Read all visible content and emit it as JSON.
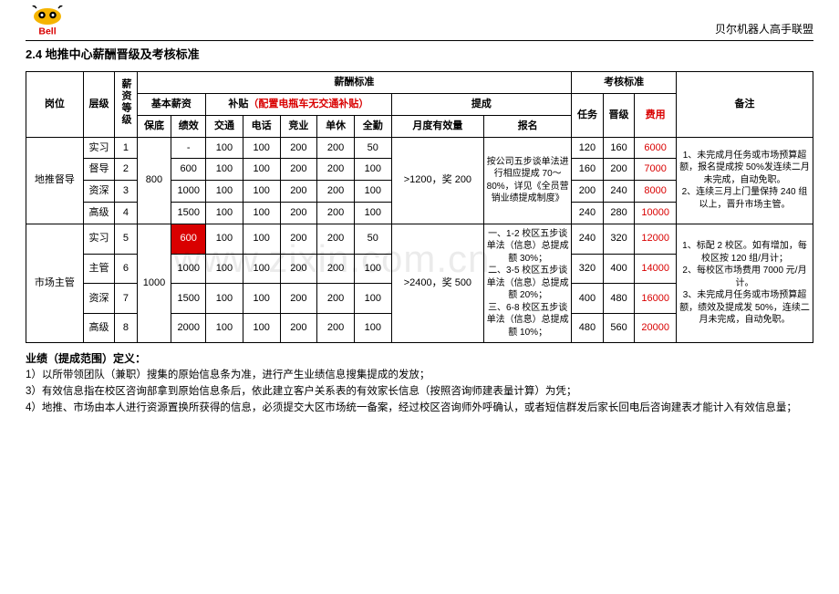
{
  "header": {
    "brand": "贝尔机器人高手联盟",
    "logo_name": "Bell"
  },
  "section_title": "2.4 地推中心薪酬晋级及考核标准",
  "watermark": "www.zixin.com.cn",
  "cols": {
    "post": "岗位",
    "level": "层级",
    "grade": "薪资等级",
    "salary_std": "薪酬标准",
    "assess_std": "考核标准",
    "remark": "备注",
    "base": "基本薪资",
    "allowance": "补贴",
    "allowance_note": "（配置电瓶车无交通补贴）",
    "commission": "提成",
    "baodi": "保底",
    "jixiao": "绩效",
    "jiaotong": "交通",
    "dianhua": "电话",
    "jingye": "竞业",
    "danxiu": "单休",
    "quanqin": "全勤",
    "yuedu": "月度有效量",
    "baoming": "报名",
    "renwu": "任务",
    "jinji": "晋级",
    "feiyong": "费用"
  },
  "feiyong_color": "#d90000",
  "allowance_note_color": "#d90000",
  "redcell_bg": "#d90000",
  "groups": [
    {
      "post": "地推督导",
      "baodi": "800",
      "yuedu": ">1200，奖 200",
      "baoming": "按公司五步谈单法进行相应提成 70～80%，详见《全员营销业绩提成制度》",
      "remark": "1、未完成月任务或市场预算超额，报名提成按 50%发连续二月未完成，自动免职。\n2、连续三月上门量保持 240 组以上，晋升市场主管。",
      "rows": [
        {
          "level": "实习",
          "grade": "1",
          "jixiao": "-",
          "jt": "100",
          "dh": "100",
          "jy": "200",
          "dx": "200",
          "qq": "50",
          "rw": "120",
          "jj": "160",
          "fy": "6000"
        },
        {
          "level": "督导",
          "grade": "2",
          "jixiao": "600",
          "jt": "100",
          "dh": "100",
          "jy": "200",
          "dx": "200",
          "qq": "100",
          "rw": "160",
          "jj": "200",
          "fy": "7000"
        },
        {
          "level": "资深",
          "grade": "3",
          "jixiao": "1000",
          "jt": "100",
          "dh": "100",
          "jy": "200",
          "dx": "200",
          "qq": "100",
          "rw": "200",
          "jj": "240",
          "fy": "8000"
        },
        {
          "level": "高级",
          "grade": "4",
          "jixiao": "1500",
          "jt": "100",
          "dh": "100",
          "jy": "200",
          "dx": "200",
          "qq": "100",
          "rw": "240",
          "jj": "280",
          "fy": "10000"
        }
      ]
    },
    {
      "post": "市场主管",
      "baodi": "1000",
      "yuedu": ">2400，奖 500",
      "baoming": "一、1-2 校区五步谈单法（信息）总提成额 30%；\n二、3-5 校区五步谈单法（信息）总提成额 20%；\n三、6-8 校区五步谈单法（信息）总提成额 10%；",
      "remark": "1、标配 2 校区。如有增加，每校区按 120 组/月计；\n2、每校区市场费用 7000 元/月计。\n3、未完成月任务或市场预算超额，绩效及提成发 50%，连续二月未完成，自动免职。",
      "rows": [
        {
          "level": "实习",
          "grade": "5",
          "jixiao": "600",
          "jixiao_red": true,
          "jt": "100",
          "dh": "100",
          "jy": "200",
          "dx": "200",
          "qq": "50",
          "rw": "240",
          "jj": "320",
          "fy": "12000"
        },
        {
          "level": "主管",
          "grade": "6",
          "jixiao": "1000",
          "jt": "100",
          "dh": "100",
          "jy": "200",
          "dx": "200",
          "qq": "100",
          "rw": "320",
          "jj": "400",
          "fy": "14000"
        },
        {
          "level": "资深",
          "grade": "7",
          "jixiao": "1500",
          "jt": "100",
          "dh": "100",
          "jy": "200",
          "dx": "200",
          "qq": "100",
          "rw": "400",
          "jj": "480",
          "fy": "16000"
        },
        {
          "level": "高级",
          "grade": "8",
          "jixiao": "2000",
          "jt": "100",
          "dh": "100",
          "jy": "200",
          "dx": "200",
          "qq": "100",
          "rw": "480",
          "jj": "560",
          "fy": "20000"
        }
      ]
    }
  ],
  "defs": {
    "title": "业绩（提成范围）定义：",
    "items": [
      "1）以所带领团队（兼职）搜集的原始信息条为准，进行产生业绩信息搜集提成的发放；",
      "3）有效信息指在校区咨询部拿到原始信息条后，依此建立客户关系表的有效家长信息（按照咨询师建表量计算）为凭；",
      "4）地推、市场由本人进行资源置换所获得的信息，必须提交大区市场统一备案，经过校区咨询师外呼确认，或者短信群发后家长回电后咨询建表才能计入有效信息量；"
    ]
  }
}
